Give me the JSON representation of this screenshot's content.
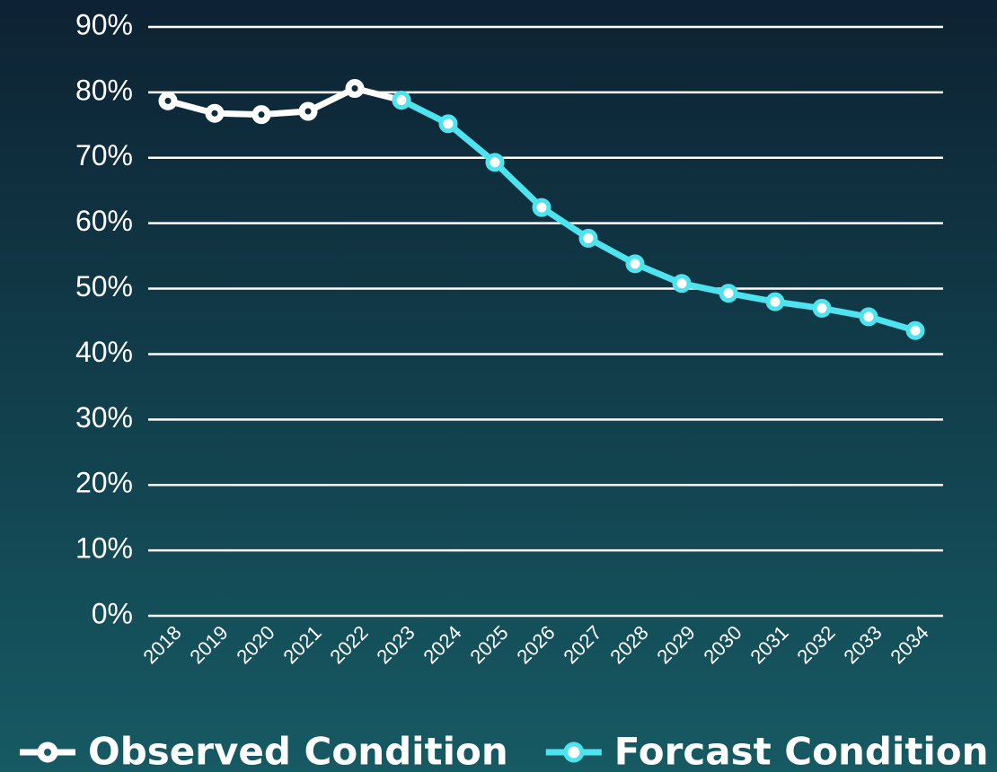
{
  "chart_data": {
    "type": "line",
    "categories": [
      "2018",
      "2019",
      "2020",
      "2021",
      "2022",
      "2023",
      "2024",
      "2025",
      "2026",
      "2027",
      "2028",
      "2029",
      "2030",
      "2031",
      "2032",
      "2033",
      "2034"
    ],
    "series": [
      {
        "name": "Observed Condition",
        "color": "#ffffff",
        "values": [
          78.7,
          76.8,
          76.6,
          77.1,
          80.6,
          78.8,
          null,
          null,
          null,
          null,
          null,
          null,
          null,
          null,
          null,
          null,
          null
        ]
      },
      {
        "name": "Forcast Condition",
        "color": "#4de3ef",
        "values": [
          null,
          null,
          null,
          null,
          null,
          78.8,
          75.2,
          69.3,
          62.4,
          57.7,
          53.8,
          50.8,
          49.3,
          48.0,
          47.0,
          45.7,
          43.6
        ]
      }
    ],
    "ylim": [
      0,
      90
    ],
    "yticks": [
      {
        "value": 0,
        "label": "0%"
      },
      {
        "value": 10,
        "label": "10%"
      },
      {
        "value": 20,
        "label": "20%"
      },
      {
        "value": 30,
        "label": "30%"
      },
      {
        "value": 40,
        "label": "40%"
      },
      {
        "value": 50,
        "label": "50%"
      },
      {
        "value": 60,
        "label": "60%"
      },
      {
        "value": 70,
        "label": "70%"
      },
      {
        "value": 80,
        "label": "80%"
      },
      {
        "value": 90,
        "label": "90%"
      }
    ],
    "grid": true,
    "legend": "bottom"
  }
}
